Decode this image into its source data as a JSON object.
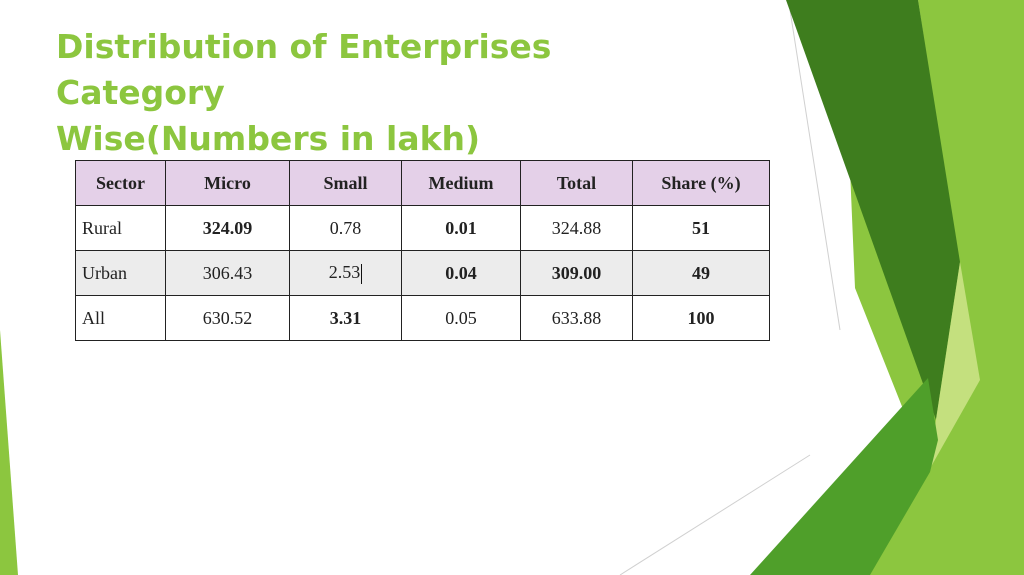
{
  "slide": {
    "title_lines": [
      "Distribution of Enterprises",
      "Category",
      "Wise(Numbers in lakh)"
    ]
  },
  "table": {
    "headers": [
      "Sector",
      "Micro",
      "Small",
      "Medium",
      "Total",
      "Share (%)"
    ],
    "rows": [
      [
        "Rural",
        "324.09",
        "0.78",
        "0.01",
        "324.88",
        "51"
      ],
      [
        "Urban",
        "306.43",
        "2.53",
        "0.04",
        "309.00",
        "49"
      ],
      [
        "All",
        "630.52",
        "3.31",
        "0.05",
        "633.88",
        "100"
      ]
    ]
  },
  "colors": {
    "title": "#8cc63f",
    "header_bg": "#e4d0e8",
    "shaded_row_bg": "#ececec",
    "green_light": "#8cc63f",
    "green_dark": "#3e7d1e",
    "green_mid": "#4f9f2a",
    "green_pale": "#c4e07e"
  }
}
